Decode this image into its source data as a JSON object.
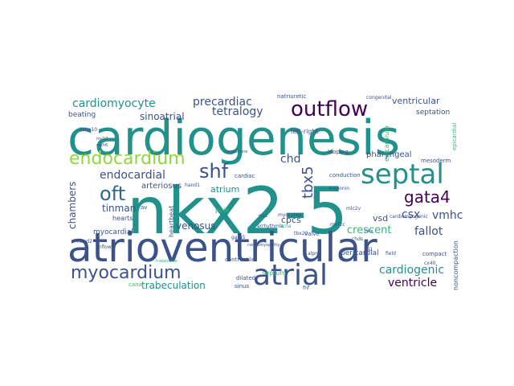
{
  "cloud": {
    "palette": {
      "dark_purple": "#440154",
      "indigo": "#3b528b",
      "blue": "#31688e",
      "teal": "#21918c",
      "green": "#35b779",
      "lime": "#90d743",
      "yellow": "#fde725"
    },
    "words": [
      {
        "text": "nkx2-5",
        "color": "#21918c"
      },
      {
        "text": "cardiogenesis",
        "color": "#21918c"
      },
      {
        "text": "atrioventricular",
        "color": "#3b528b"
      },
      {
        "text": "septal",
        "color": "#21918c"
      },
      {
        "text": "atrial",
        "color": "#3b528b"
      },
      {
        "text": "outflow",
        "color": "#440154"
      },
      {
        "text": "myocardium",
        "color": "#3b528b"
      },
      {
        "text": "endocardium",
        "color": "#90d743"
      },
      {
        "text": "shf",
        "color": "#3b528b"
      },
      {
        "text": "oft",
        "color": "#31688e"
      },
      {
        "text": "gata4",
        "color": "#440154"
      },
      {
        "text": "tbx5",
        "color": "#3b528b"
      },
      {
        "text": "cardiomyocyte",
        "color": "#21918c"
      },
      {
        "text": "precardiac",
        "color": "#3b528b"
      },
      {
        "text": "endocardial",
        "color": "#3b528b"
      },
      {
        "text": "tetralogy",
        "color": "#3b528b"
      },
      {
        "text": "chd",
        "color": "#3b528b"
      },
      {
        "text": "fallot",
        "color": "#3b528b"
      },
      {
        "text": "cardiogenic",
        "color": "#21918c"
      },
      {
        "text": "ventricle",
        "color": "#440154"
      },
      {
        "text": "trabeculation",
        "color": "#21918c"
      },
      {
        "text": "crescent",
        "color": "#35b779"
      },
      {
        "text": "csx",
        "color": "#3b528b"
      },
      {
        "text": "vmhc",
        "color": "#3b528b"
      },
      {
        "text": "sinoatrial",
        "color": "#3b528b"
      },
      {
        "text": "ventricular",
        "color": "#3b528b"
      },
      {
        "text": "venosus",
        "color": "#3b528b"
      },
      {
        "text": "tinman",
        "color": "#3b528b"
      },
      {
        "text": "chambers",
        "color": "#3b528b"
      },
      {
        "text": "atrium",
        "color": "#21918c"
      },
      {
        "text": "septation",
        "color": "#3b528b"
      },
      {
        "text": "vsd",
        "color": "#3b528b"
      },
      {
        "text": "cpcs",
        "color": "#3b528b"
      },
      {
        "text": "pharyngeal",
        "color": "#3b528b"
      },
      {
        "text": "beating",
        "color": "#3b528b"
      },
      {
        "text": "arteriosus",
        "color": "#3b528b"
      },
      {
        "text": "myocardial",
        "color": "#3b528b"
      },
      {
        "text": "pericardial",
        "color": "#3b528b"
      },
      {
        "text": "left-right",
        "color": "#3b528b"
      },
      {
        "text": "looping",
        "color": "#3b528b"
      },
      {
        "text": "cardiac",
        "color": "#3b528b"
      },
      {
        "text": "conduction",
        "color": "#3b528b"
      },
      {
        "text": "pole",
        "color": "#35b779"
      },
      {
        "text": "hearts",
        "color": "#3b528b"
      },
      {
        "text": "heartbeat",
        "color": "#3b528b"
      },
      {
        "text": "mesoderm",
        "color": "#3b528b"
      },
      {
        "text": "valve",
        "color": "#3b528b"
      },
      {
        "text": "contractile",
        "color": "#3b528b"
      },
      {
        "text": "dilated",
        "color": "#3b528b"
      },
      {
        "text": "septum",
        "color": "#35b779"
      },
      {
        "text": "canal",
        "color": "#35b779"
      },
      {
        "text": "sinus",
        "color": "#3b528b"
      },
      {
        "text": "compact",
        "color": "#3b528b"
      },
      {
        "text": "noncompaction",
        "color": "#3b528b"
      },
      {
        "text": "epicardium",
        "color": "#35b779"
      },
      {
        "text": "epicardial",
        "color": "#35b779"
      },
      {
        "text": "congenital",
        "color": "#3b528b"
      },
      {
        "text": "natriuretic",
        "color": "#3b528b"
      },
      {
        "text": "troponin",
        "color": "#3b528b"
      },
      {
        "text": "arrhythmia",
        "color": "#3b528b"
      },
      {
        "text": "myocytes",
        "color": "#3b528b"
      },
      {
        "text": "hand1",
        "color": "#3b528b"
      },
      {
        "text": "hand2",
        "color": "#3b528b"
      },
      {
        "text": "inflow",
        "color": "#3b528b"
      },
      {
        "text": "isl1",
        "color": "#3b528b"
      },
      {
        "text": "mef2c",
        "color": "#3b528b"
      },
      {
        "text": "tbx20",
        "color": "#3b528b"
      },
      {
        "text": "gata5",
        "color": "#3b528b"
      },
      {
        "text": "mlc2v",
        "color": "#3b528b"
      },
      {
        "text": "cardiomyogenic",
        "color": "#3b528b"
      },
      {
        "text": "bmp10",
        "color": "#3b528b"
      },
      {
        "text": "my17",
        "color": "#3b528b"
      },
      {
        "text": "myh6",
        "color": "#3b528b"
      },
      {
        "text": "chds",
        "color": "#3b528b"
      },
      {
        "text": "nkx",
        "color": "#3b528b"
      },
      {
        "text": "cx40",
        "color": "#3b528b"
      },
      {
        "text": "alpm",
        "color": "#3b528b"
      },
      {
        "text": "field",
        "color": "#3b528b"
      },
      {
        "text": "av",
        "color": "#3b528b"
      },
      {
        "text": "trabeculae",
        "color": "#35b779"
      },
      {
        "text": "cardiomyopathy",
        "color": "#3b528b"
      },
      {
        "text": "fhf",
        "color": "#3b528b"
      },
      {
        "text": "bcna",
        "color": "#35b779"
      },
      {
        "text": "tbx1",
        "color": "#3b528b"
      },
      {
        "text": "cardiomere",
        "color": "#3b528b"
      }
    ]
  }
}
